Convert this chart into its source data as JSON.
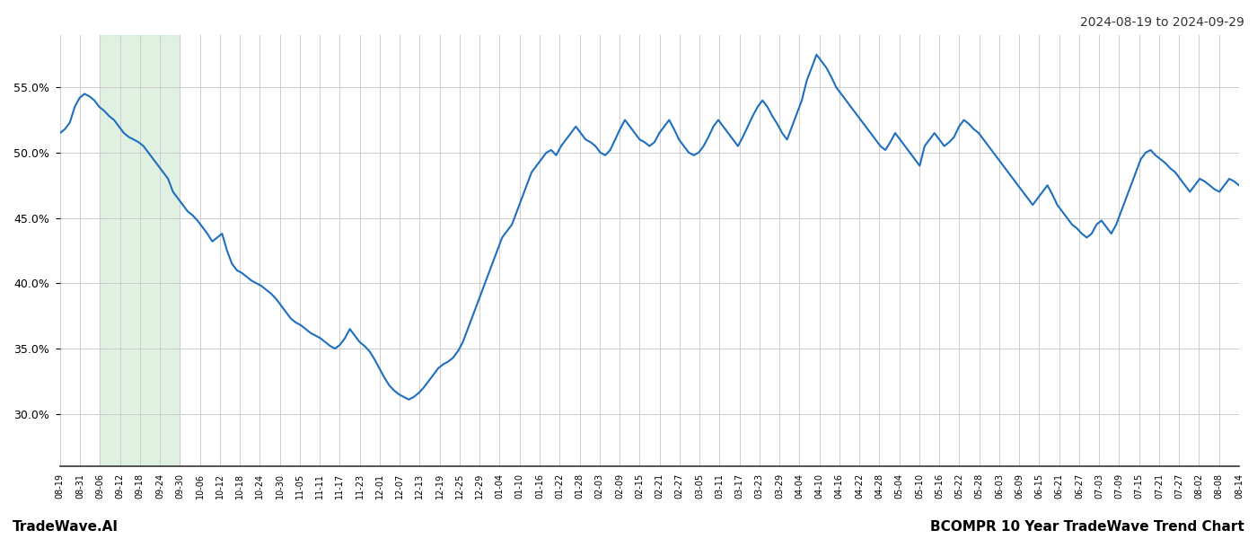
{
  "title_right": "2024-08-19 to 2024-09-29",
  "footer_left": "TradeWave.AI",
  "footer_right": "BCOMPR 10 Year TradeWave Trend Chart",
  "line_color": "#1f6fbf",
  "line_width": 1.5,
  "highlight_color": "#c8e6c9",
  "highlight_alpha": 0.55,
  "background_color": "#ffffff",
  "grid_color": "#cccccc",
  "ylim": [
    26,
    59
  ],
  "yticks": [
    30.0,
    35.0,
    40.0,
    45.0,
    50.0,
    55.0
  ],
  "x_labels": [
    "08-19",
    "08-31",
    "09-06",
    "09-12",
    "09-18",
    "09-24",
    "09-30",
    "10-06",
    "10-12",
    "10-18",
    "10-24",
    "10-30",
    "11-05",
    "11-11",
    "11-17",
    "11-23",
    "12-01",
    "12-07",
    "12-13",
    "12-19",
    "12-25",
    "12-29",
    "01-04",
    "01-10",
    "01-16",
    "01-22",
    "01-28",
    "02-03",
    "02-09",
    "02-15",
    "02-21",
    "02-27",
    "03-05",
    "03-11",
    "03-17",
    "03-23",
    "03-29",
    "04-04",
    "04-10",
    "04-16",
    "04-22",
    "04-28",
    "05-04",
    "05-10",
    "05-16",
    "05-22",
    "05-28",
    "06-03",
    "06-09",
    "06-15",
    "06-21",
    "06-27",
    "07-03",
    "07-09",
    "07-15",
    "07-21",
    "07-27",
    "08-02",
    "08-08",
    "08-14"
  ],
  "highlight_start_label": "09-06",
  "highlight_end_label": "09-30",
  "values": [
    51.5,
    51.8,
    52.3,
    53.5,
    54.2,
    54.5,
    54.3,
    54.0,
    53.5,
    53.2,
    52.8,
    52.5,
    52.0,
    51.5,
    51.2,
    51.0,
    50.8,
    50.5,
    50.0,
    49.5,
    49.0,
    48.5,
    48.0,
    47.0,
    46.5,
    46.0,
    45.5,
    45.2,
    44.8,
    44.3,
    43.8,
    43.2,
    43.5,
    43.8,
    42.5,
    41.5,
    41.0,
    40.8,
    40.5,
    40.2,
    40.0,
    39.8,
    39.5,
    39.2,
    38.8,
    38.3,
    37.8,
    37.3,
    37.0,
    36.8,
    36.5,
    36.2,
    36.0,
    35.8,
    35.5,
    35.2,
    35.0,
    35.3,
    35.8,
    36.5,
    36.0,
    35.5,
    35.2,
    34.8,
    34.2,
    33.5,
    32.8,
    32.2,
    31.8,
    31.5,
    31.3,
    31.1,
    31.3,
    31.6,
    32.0,
    32.5,
    33.0,
    33.5,
    33.8,
    34.0,
    34.3,
    34.8,
    35.5,
    36.5,
    37.5,
    38.5,
    39.5,
    40.5,
    41.5,
    42.5,
    43.5,
    44.0,
    44.5,
    45.5,
    46.5,
    47.5,
    48.5,
    49.0,
    49.5,
    50.0,
    50.2,
    49.8,
    50.5,
    51.0,
    51.5,
    52.0,
    51.5,
    51.0,
    50.8,
    50.5,
    50.0,
    49.8,
    50.2,
    51.0,
    51.8,
    52.5,
    52.0,
    51.5,
    51.0,
    50.8,
    50.5,
    50.8,
    51.5,
    52.0,
    52.5,
    51.8,
    51.0,
    50.5,
    50.0,
    49.8,
    50.0,
    50.5,
    51.2,
    52.0,
    52.5,
    52.0,
    51.5,
    51.0,
    50.5,
    51.2,
    52.0,
    52.8,
    53.5,
    54.0,
    53.5,
    52.8,
    52.2,
    51.5,
    51.0,
    52.0,
    53.0,
    54.0,
    55.5,
    56.5,
    57.5,
    57.0,
    56.5,
    55.8,
    55.0,
    54.5,
    54.0,
    53.5,
    53.0,
    52.5,
    52.0,
    51.5,
    51.0,
    50.5,
    50.2,
    50.8,
    51.5,
    51.0,
    50.5,
    50.0,
    49.5,
    49.0,
    50.5,
    51.0,
    51.5,
    51.0,
    50.5,
    50.8,
    51.2,
    52.0,
    52.5,
    52.2,
    51.8,
    51.5,
    51.0,
    50.5,
    50.0,
    49.5,
    49.0,
    48.5,
    48.0,
    47.5,
    47.0,
    46.5,
    46.0,
    46.5,
    47.0,
    47.5,
    46.8,
    46.0,
    45.5,
    45.0,
    44.5,
    44.2,
    43.8,
    43.5,
    43.8,
    44.5,
    44.8,
    44.3,
    43.8,
    44.5,
    45.5,
    46.5,
    47.5,
    48.5,
    49.5,
    50.0,
    50.2,
    49.8,
    49.5,
    49.2,
    48.8,
    48.5,
    48.0,
    47.5,
    47.0,
    47.5,
    48.0,
    47.8,
    47.5,
    47.2,
    47.0,
    47.5,
    48.0,
    47.8,
    47.5
  ]
}
